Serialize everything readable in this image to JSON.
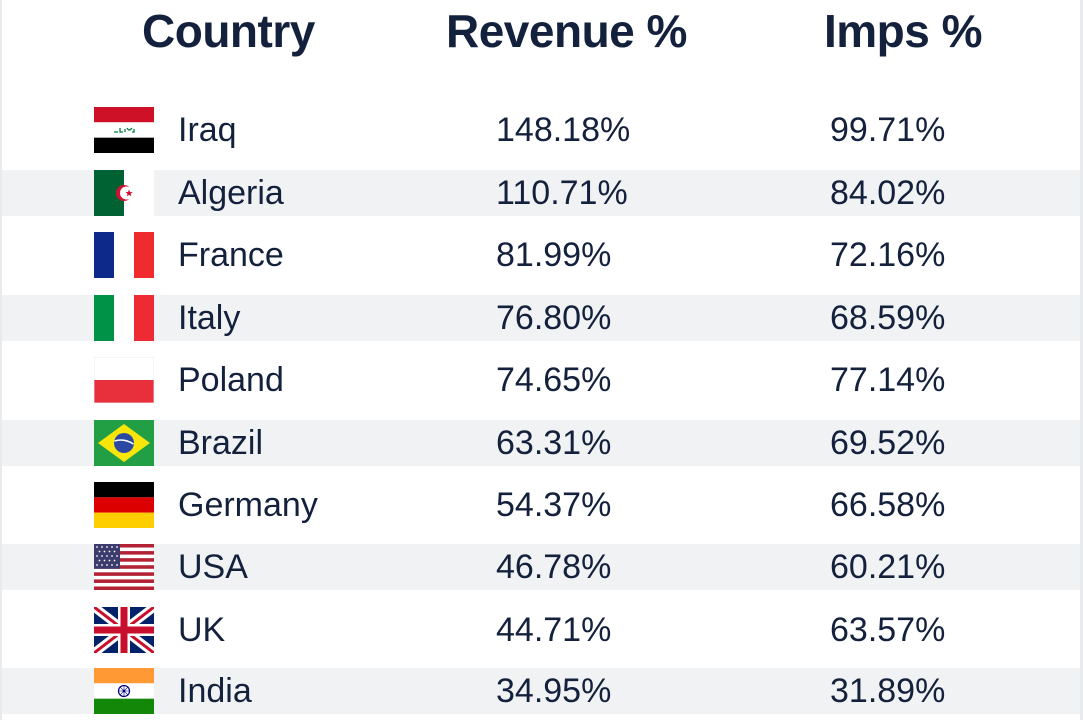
{
  "header": {
    "country": "Country",
    "revenue": "Revenue %",
    "imps": "Imps %"
  },
  "chart_data": {
    "type": "table",
    "columns": [
      "Country",
      "Revenue %",
      "Imps %"
    ],
    "rows": [
      {
        "country": "Iraq",
        "flag": "iraq-flag-icon",
        "revenue": "148.18%",
        "imps": "99.71%"
      },
      {
        "country": "Algeria",
        "flag": "algeria-flag-icon",
        "revenue": "110.71%",
        "imps": "84.02%"
      },
      {
        "country": "France",
        "flag": "france-flag-icon",
        "revenue": "81.99%",
        "imps": "72.16%"
      },
      {
        "country": "Italy",
        "flag": "italy-flag-icon",
        "revenue": "76.80%",
        "imps": "68.59%"
      },
      {
        "country": "Poland",
        "flag": "poland-flag-icon",
        "revenue": "74.65%",
        "imps": "77.14%"
      },
      {
        "country": "Brazil",
        "flag": "brazil-flag-icon",
        "revenue": "63.31%",
        "imps": "69.52%"
      },
      {
        "country": "Germany",
        "flag": "germany-flag-icon",
        "revenue": "54.37%",
        "imps": "66.58%"
      },
      {
        "country": "USA",
        "flag": "usa-flag-icon",
        "revenue": "46.78%",
        "imps": "60.21%"
      },
      {
        "country": "UK",
        "flag": "uk-flag-icon",
        "revenue": "44.71%",
        "imps": "63.57%"
      },
      {
        "country": "India",
        "flag": "india-flag-icon",
        "revenue": "34.95%",
        "imps": "31.89%"
      }
    ]
  },
  "colors": {
    "text": "#14213d",
    "row_shade": "#f0f2f3",
    "background": "#ffffff"
  }
}
